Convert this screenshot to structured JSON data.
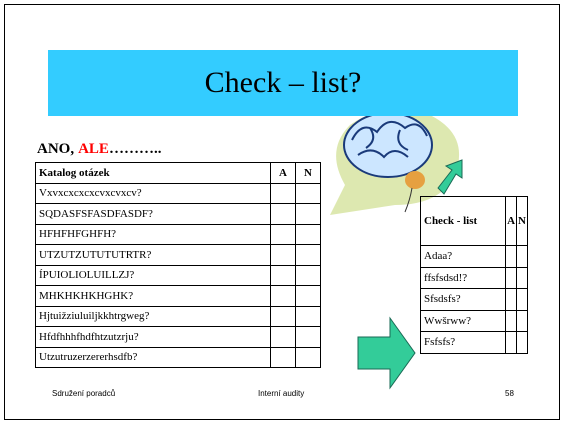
{
  "title": "Check – list?",
  "subtitle": {
    "part1": "ANO,",
    "part2": "ALE",
    "part3": "……….."
  },
  "table_main": {
    "header": [
      "Katalog otázek",
      "A",
      "N"
    ],
    "rows": [
      "Vxvxcxcxcxcvxcvxcv?",
      "SQDASFSFASDFASDF?",
      "HFHFHFGHFH?",
      "UTZUTZUTUTUTRTR?",
      "ÍPUIOLIOLUILLZJ?",
      "MHKHKHKHGHK?",
      "Hjtuižziuluiljkkhtrgweg?",
      "Hfdfhhhfhdfhtzutzrju?",
      "Utzutruzerzererhsdfb?"
    ]
  },
  "table_small": {
    "header": [
      "Check - list",
      "A",
      "N"
    ],
    "rows": [
      "Adaa?",
      "ffsfsdsd!?",
      "Sfsdsfs?",
      "Wwšrww?",
      "Fsfsfs?"
    ]
  },
  "footer": {
    "left": "Sdružení poradců",
    "center": "Interní audity",
    "page": "58"
  }
}
